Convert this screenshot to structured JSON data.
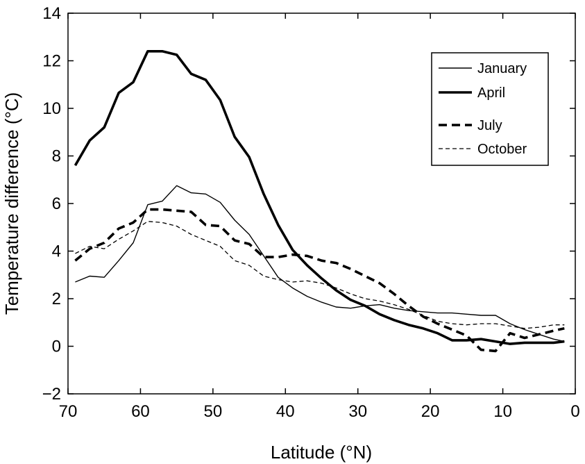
{
  "chart_data": {
    "type": "line",
    "xlabel": "Latitude (°N)",
    "ylabel": "Temperature difference (°C)",
    "xlim": [
      70,
      0
    ],
    "ylim": [
      -2,
      14
    ],
    "x_ticks": [
      70,
      60,
      50,
      40,
      30,
      20,
      10,
      0
    ],
    "y_ticks": [
      -2,
      0,
      2,
      4,
      6,
      8,
      10,
      12,
      14
    ],
    "x_tick_labels": [
      "70",
      "60",
      "50",
      "40",
      "30",
      "20",
      "10",
      "0"
    ],
    "y_tick_labels": [
      "−2",
      "0",
      "2",
      "4",
      "6",
      "8",
      "10",
      "12",
      "14"
    ],
    "grid": false,
    "legend_position": "top-right",
    "series": [
      {
        "name": "January",
        "style": "thin-solid",
        "color": "#000000",
        "points": [
          [
            69,
            2.7
          ],
          [
            67,
            2.95
          ],
          [
            65,
            2.9
          ],
          [
            63,
            3.6
          ],
          [
            61,
            4.35
          ],
          [
            59,
            5.95
          ],
          [
            57,
            6.1
          ],
          [
            55,
            6.75
          ],
          [
            53,
            6.45
          ],
          [
            51,
            6.4
          ],
          [
            49,
            6.05
          ],
          [
            47,
            5.3
          ],
          [
            45,
            4.7
          ],
          [
            43,
            3.8
          ],
          [
            41,
            2.9
          ],
          [
            39,
            2.45
          ],
          [
            37,
            2.1
          ],
          [
            35,
            1.85
          ],
          [
            33,
            1.65
          ],
          [
            31,
            1.6
          ],
          [
            29,
            1.7
          ],
          [
            27,
            1.75
          ],
          [
            25,
            1.6
          ],
          [
            23,
            1.5
          ],
          [
            21,
            1.45
          ],
          [
            19,
            1.4
          ],
          [
            17,
            1.4
          ],
          [
            15,
            1.35
          ],
          [
            13,
            1.3
          ],
          [
            11,
            1.3
          ],
          [
            9,
            0.95
          ],
          [
            7,
            0.7
          ],
          [
            5,
            0.5
          ],
          [
            3,
            0.3
          ],
          [
            1.5,
            0.2
          ]
        ]
      },
      {
        "name": "April",
        "style": "thick-solid",
        "color": "#000000",
        "points": [
          [
            69,
            7.6
          ],
          [
            67,
            8.65
          ],
          [
            65,
            9.2
          ],
          [
            63,
            10.65
          ],
          [
            61,
            11.1
          ],
          [
            59,
            12.4
          ],
          [
            57,
            12.4
          ],
          [
            55,
            12.25
          ],
          [
            53,
            11.45
          ],
          [
            51,
            11.2
          ],
          [
            49,
            10.35
          ],
          [
            47,
            8.8
          ],
          [
            45,
            7.95
          ],
          [
            43,
            6.4
          ],
          [
            41,
            5.1
          ],
          [
            39,
            4.05
          ],
          [
            37,
            3.4
          ],
          [
            35,
            2.85
          ],
          [
            33,
            2.35
          ],
          [
            31,
            1.95
          ],
          [
            29,
            1.7
          ],
          [
            27,
            1.35
          ],
          [
            25,
            1.1
          ],
          [
            23,
            0.9
          ],
          [
            21,
            0.75
          ],
          [
            19,
            0.55
          ],
          [
            17,
            0.25
          ],
          [
            15,
            0.25
          ],
          [
            13,
            0.3
          ],
          [
            11,
            0.2
          ],
          [
            9,
            0.1
          ],
          [
            7,
            0.15
          ],
          [
            5,
            0.15
          ],
          [
            3,
            0.15
          ],
          [
            1.5,
            0.2
          ]
        ]
      },
      {
        "name": "July",
        "style": "dashed",
        "color": "#000000",
        "points": [
          [
            69,
            3.6
          ],
          [
            67,
            4.1
          ],
          [
            65,
            4.35
          ],
          [
            63,
            4.95
          ],
          [
            61,
            5.2
          ],
          [
            59,
            5.75
          ],
          [
            57,
            5.75
          ],
          [
            55,
            5.7
          ],
          [
            53,
            5.65
          ],
          [
            51,
            5.1
          ],
          [
            49,
            5.05
          ],
          [
            47,
            4.45
          ],
          [
            45,
            4.3
          ],
          [
            43,
            3.75
          ],
          [
            41,
            3.75
          ],
          [
            39,
            3.85
          ],
          [
            37,
            3.8
          ],
          [
            35,
            3.6
          ],
          [
            33,
            3.5
          ],
          [
            31,
            3.25
          ],
          [
            29,
            2.95
          ],
          [
            27,
            2.65
          ],
          [
            25,
            2.2
          ],
          [
            23,
            1.7
          ],
          [
            21,
            1.25
          ],
          [
            19,
            0.95
          ],
          [
            17,
            0.7
          ],
          [
            15,
            0.45
          ],
          [
            13,
            -0.15
          ],
          [
            11,
            -0.2
          ],
          [
            9,
            0.55
          ],
          [
            7,
            0.35
          ],
          [
            5,
            0.5
          ],
          [
            3,
            0.65
          ],
          [
            1.5,
            0.75
          ]
        ]
      },
      {
        "name": "October",
        "style": "thin-dashed",
        "color": "#000000",
        "points": [
          [
            69,
            3.9
          ],
          [
            67,
            4.2
          ],
          [
            65,
            4.1
          ],
          [
            63,
            4.5
          ],
          [
            61,
            4.85
          ],
          [
            59,
            5.25
          ],
          [
            57,
            5.2
          ],
          [
            55,
            5.05
          ],
          [
            53,
            4.7
          ],
          [
            51,
            4.45
          ],
          [
            49,
            4.2
          ],
          [
            47,
            3.6
          ],
          [
            45,
            3.4
          ],
          [
            43,
            2.95
          ],
          [
            41,
            2.8
          ],
          [
            39,
            2.7
          ],
          [
            37,
            2.75
          ],
          [
            35,
            2.65
          ],
          [
            33,
            2.45
          ],
          [
            31,
            2.2
          ],
          [
            29,
            2.0
          ],
          [
            27,
            1.9
          ],
          [
            25,
            1.75
          ],
          [
            23,
            1.55
          ],
          [
            21,
            1.3
          ],
          [
            19,
            1.05
          ],
          [
            17,
            0.95
          ],
          [
            15,
            0.9
          ],
          [
            13,
            0.95
          ],
          [
            11,
            0.95
          ],
          [
            9,
            0.85
          ],
          [
            7,
            0.75
          ],
          [
            5,
            0.8
          ],
          [
            3,
            0.9
          ],
          [
            1.5,
            0.9
          ]
        ]
      }
    ]
  }
}
